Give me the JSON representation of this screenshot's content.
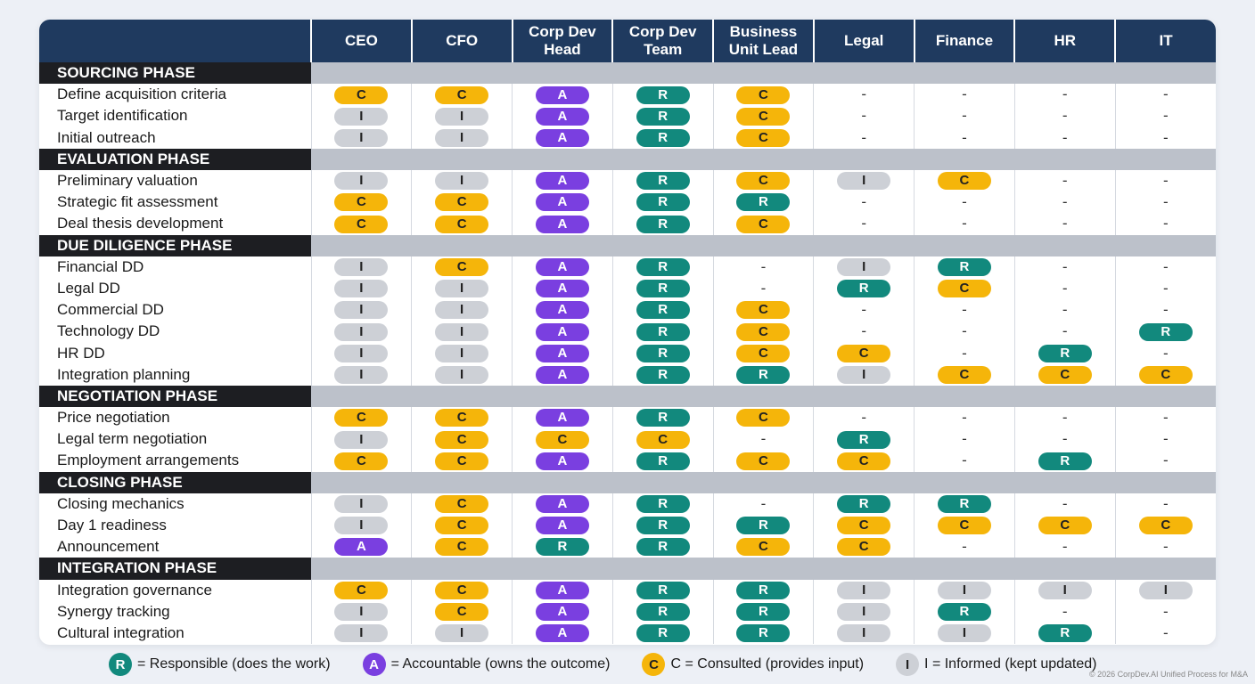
{
  "colors": {
    "R": "#12897d",
    "A": "#7a3fe0",
    "C": "#f5b50a",
    "I": "#cdd0d6",
    "header": "#1f3a5f"
  },
  "columns": [
    "CEO",
    "CFO",
    "Corp Dev Head",
    "Corp Dev Team",
    "Business Unit Lead",
    "Legal",
    "Finance",
    "HR",
    "IT"
  ],
  "phases": [
    {
      "name": "SOURCING PHASE",
      "tasks": [
        {
          "name": "Define acquisition criteria",
          "cells": [
            "C",
            "C",
            "A",
            "R",
            "C",
            "-",
            "-",
            "-",
            "-"
          ]
        },
        {
          "name": "Target identification",
          "cells": [
            "I",
            "I",
            "A",
            "R",
            "C",
            "-",
            "-",
            "-",
            "-"
          ]
        },
        {
          "name": "Initial outreach",
          "cells": [
            "I",
            "I",
            "A",
            "R",
            "C",
            "-",
            "-",
            "-",
            "-"
          ]
        }
      ]
    },
    {
      "name": "EVALUATION PHASE",
      "tasks": [
        {
          "name": "Preliminary valuation",
          "cells": [
            "I",
            "I",
            "A",
            "R",
            "C",
            "I",
            "C",
            "-",
            "-"
          ]
        },
        {
          "name": "Strategic fit assessment",
          "cells": [
            "C",
            "C",
            "A",
            "R",
            "R",
            "-",
            "-",
            "-",
            "-"
          ]
        },
        {
          "name": "Deal thesis development",
          "cells": [
            "C",
            "C",
            "A",
            "R",
            "C",
            "-",
            "-",
            "-",
            "-"
          ]
        }
      ]
    },
    {
      "name": "DUE DILIGENCE PHASE",
      "tasks": [
        {
          "name": "Financial DD",
          "cells": [
            "I",
            "C",
            "A",
            "R",
            "-",
            "I",
            "R",
            "-",
            "-"
          ]
        },
        {
          "name": "Legal DD",
          "cells": [
            "I",
            "I",
            "A",
            "R",
            "-",
            "R",
            "C",
            "-",
            "-"
          ]
        },
        {
          "name": "Commercial DD",
          "cells": [
            "I",
            "I",
            "A",
            "R",
            "C",
            "-",
            "-",
            "-",
            "-"
          ]
        },
        {
          "name": "Technology DD",
          "cells": [
            "I",
            "I",
            "A",
            "R",
            "C",
            "-",
            "-",
            "-",
            "R"
          ]
        },
        {
          "name": "HR DD",
          "cells": [
            "I",
            "I",
            "A",
            "R",
            "C",
            "C",
            "-",
            "R",
            "-"
          ]
        },
        {
          "name": "Integration planning",
          "cells": [
            "I",
            "I",
            "A",
            "R",
            "R",
            "I",
            "C",
            "C",
            "C"
          ]
        }
      ]
    },
    {
      "name": "NEGOTIATION PHASE",
      "tasks": [
        {
          "name": "Price negotiation",
          "cells": [
            "C",
            "C",
            "A",
            "R",
            "C",
            "-",
            "-",
            "-",
            "-"
          ]
        },
        {
          "name": "Legal term negotiation",
          "cells": [
            "I",
            "C",
            "C",
            "C",
            "-",
            "R",
            "-",
            "-",
            "-"
          ]
        },
        {
          "name": "Employment arrangements",
          "cells": [
            "C",
            "C",
            "A",
            "R",
            "C",
            "C",
            "-",
            "R",
            "-"
          ]
        }
      ]
    },
    {
      "name": "CLOSING PHASE",
      "tasks": [
        {
          "name": "Closing mechanics",
          "cells": [
            "I",
            "C",
            "A",
            "R",
            "-",
            "R",
            "R",
            "-",
            "-"
          ]
        },
        {
          "name": "Day 1 readiness",
          "cells": [
            "I",
            "C",
            "A",
            "R",
            "R",
            "C",
            "C",
            "C",
            "C"
          ]
        },
        {
          "name": "Announcement",
          "cells": [
            "A",
            "C",
            "R",
            "R",
            "C",
            "C",
            "-",
            "-",
            "-"
          ]
        }
      ]
    },
    {
      "name": "INTEGRATION PHASE",
      "tasks": [
        {
          "name": "Integration governance",
          "cells": [
            "C",
            "C",
            "A",
            "R",
            "R",
            "I",
            "I",
            "I",
            "I"
          ]
        },
        {
          "name": "Synergy tracking",
          "cells": [
            "I",
            "C",
            "A",
            "R",
            "R",
            "I",
            "R",
            "-",
            "-"
          ]
        },
        {
          "name": "Cultural integration",
          "cells": [
            "I",
            "I",
            "A",
            "R",
            "R",
            "I",
            "I",
            "R",
            "-"
          ]
        }
      ]
    }
  ],
  "legend": [
    {
      "badge": "R",
      "text": "= Responsible (does the work)"
    },
    {
      "badge": "A",
      "text": "= Accountable (owns the outcome)"
    },
    {
      "badge": "C",
      "text": "C = Consulted (provides input)"
    },
    {
      "badge": "I",
      "text": "I = Informed (kept updated)"
    }
  ],
  "footer": "© 2026 CorpDev.AI Unified Process for M&A"
}
